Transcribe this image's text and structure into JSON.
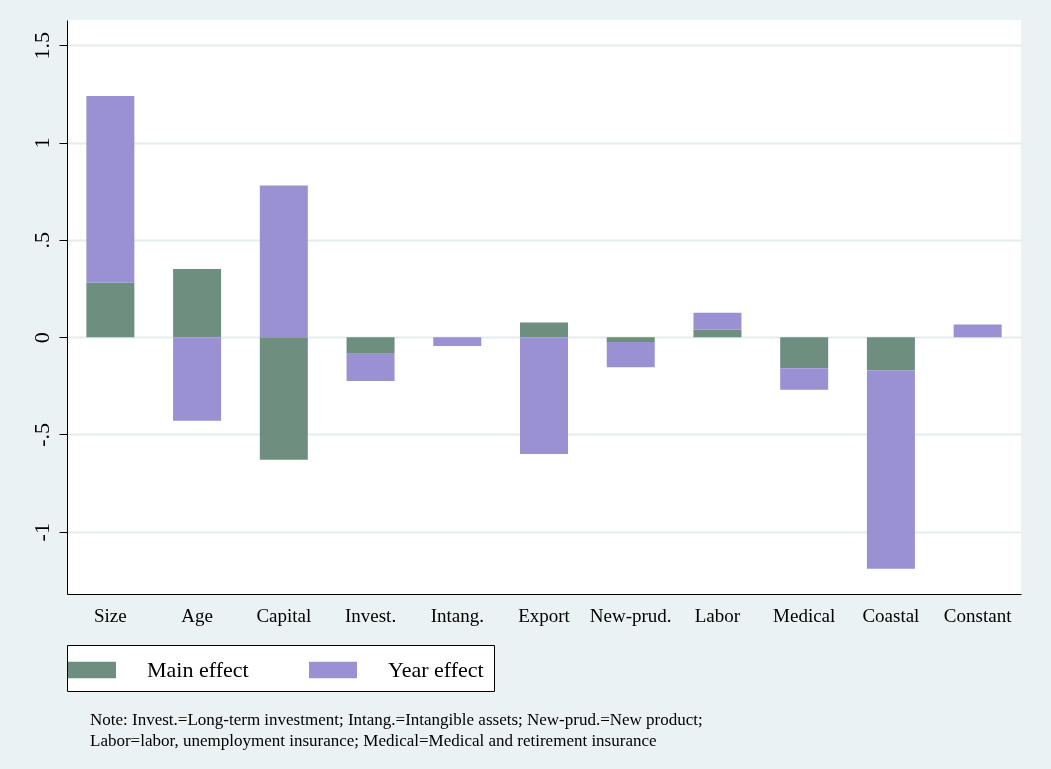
{
  "chart_data": {
    "type": "bar",
    "stacked": true,
    "categories": [
      "Size",
      "Age",
      "Capital",
      "Invest.",
      "Intang.",
      "Export",
      "New-prud.",
      "Labor",
      "Medical",
      "Coastal",
      "Constant"
    ],
    "series": [
      {
        "name": "Main effect",
        "color": "#6e8e80",
        "values": [
          0.28,
          0.35,
          -0.63,
          -0.085,
          0,
          0.075,
          -0.025,
          0.04,
          -0.16,
          -0.17,
          0
        ]
      },
      {
        "name": "Year effect",
        "color": "#9991d2",
        "values": [
          0.96,
          -0.43,
          0.78,
          -0.14,
          -0.045,
          -0.6,
          -0.13,
          0.085,
          -0.11,
          -1.02,
          0.065
        ]
      }
    ],
    "ylim": [
      -1.32,
      1.63
    ],
    "yticks": [
      -1,
      {
        "value": -0.5,
        "label": "-.5"
      },
      0,
      {
        "value": 0.5,
        "label": ".5"
      },
      1,
      1.5
    ],
    "grid": "y",
    "legend": "bottom",
    "annotations": [
      "Note: Invest.=Long-term investment; Intang.=Intangible assets; New-prud.=New product;",
      "Labor=labor, unemployment insurance; Medical=Medical and retirement insurance"
    ]
  }
}
